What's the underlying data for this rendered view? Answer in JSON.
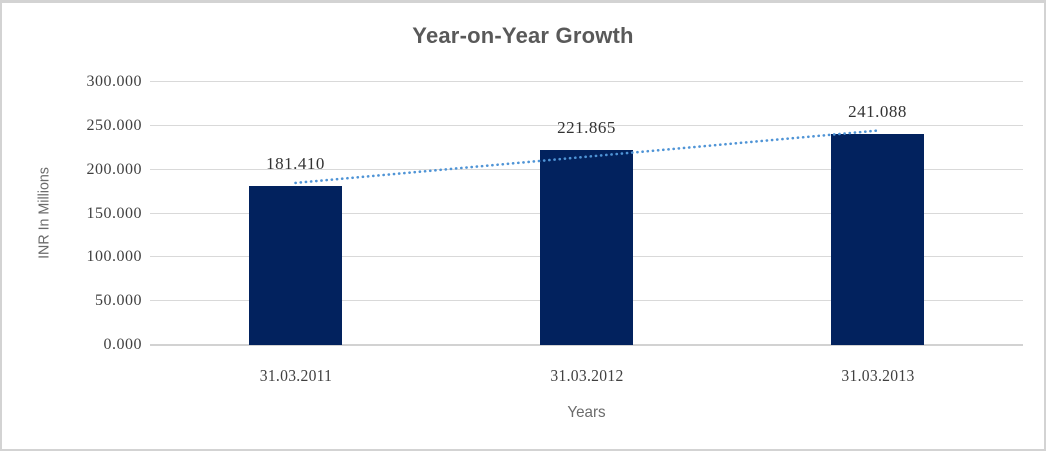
{
  "chart_data": {
    "type": "bar",
    "title": "Year-on-Year Growth",
    "categories": [
      "31.03.2011",
      "31.03.2012",
      "31.03.2013"
    ],
    "values": [
      181.41,
      221.865,
      241.088
    ],
    "value_labels": [
      "181.410",
      "221.865",
      "241.088"
    ],
    "xlabel": "Years",
    "ylabel": "INR In Millions",
    "ylim": [
      0,
      300
    ],
    "ytick_step": 50,
    "ytick_labels": [
      "0.000",
      "50.000",
      "100.000",
      "150.000",
      "200.000",
      "250.000",
      "300.000"
    ],
    "grid": true,
    "legend": false,
    "trendline": {
      "type": "linear-fit",
      "style": "dotted",
      "endpoint_values": [
        184.9,
        244.6
      ]
    },
    "colors": {
      "bar": "#02225e",
      "trendline": "#4f94d6",
      "gridline": "#d9d9d9",
      "axis_line": "#d2d2d2",
      "title_text": "#595959",
      "axis_title_text": "#6b6b6b",
      "tick_text": "#404040",
      "value_label_text": "#333333",
      "background": "#ffffff",
      "frame_border": "#d3d3d3"
    }
  }
}
